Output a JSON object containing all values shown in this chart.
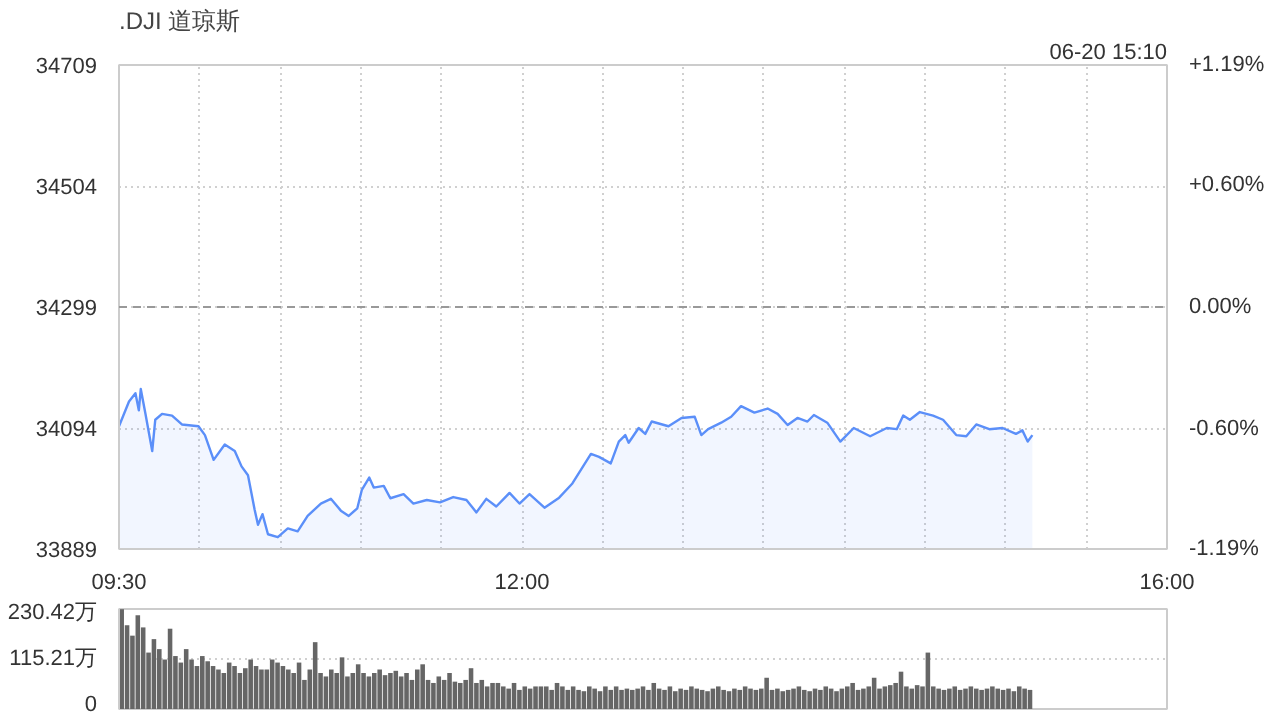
{
  "chart_data": [
    {
      "type": "area",
      "title": ".DJI 道琼斯",
      "annotations": [
        "06-20 15:10"
      ],
      "x": [
        9.5,
        9.562,
        9.602,
        9.623,
        9.635,
        9.664,
        9.706,
        9.725,
        9.767,
        9.829,
        9.89,
        9.993,
        10.033,
        10.087,
        10.156,
        10.218,
        10.26,
        10.3,
        10.341,
        10.362,
        10.39,
        10.424,
        10.485,
        10.547,
        10.608,
        10.67,
        10.752,
        10.814,
        10.876,
        10.925,
        10.978,
        11.006,
        11.052,
        11.08,
        11.142,
        11.183,
        11.265,
        11.326,
        11.409,
        11.491,
        11.573,
        11.655,
        11.717,
        11.778,
        11.84,
        11.922,
        11.984,
        12.046,
        12.139,
        12.23,
        12.312,
        12.427,
        12.477,
        12.55,
        12.6,
        12.64,
        12.661,
        12.723,
        12.764,
        12.804,
        12.908,
        12.989,
        13.071,
        13.112,
        13.154,
        13.235,
        13.297,
        13.358,
        13.441,
        13.523,
        13.585,
        13.647,
        13.708,
        13.77,
        13.81,
        13.893,
        13.974,
        14.057,
        14.159,
        14.262,
        14.324,
        14.364,
        14.405,
        14.467,
        14.549,
        14.611,
        14.693,
        14.755,
        14.817,
        14.898,
        14.98,
        15.063,
        15.103,
        15.136,
        15.165
      ],
      "series": [
        {
          "color": "#5b8ff9",
          "values": [
            34097,
            34139,
            34153,
            34124,
            34160,
            34118,
            34055,
            34108,
            34118,
            34115,
            34100,
            34097,
            34082,
            34040,
            34066,
            34055,
            34029,
            34014,
            33956,
            33930,
            33948,
            33914,
            33909,
            33924,
            33919,
            33945,
            33966,
            33974,
            33954,
            33945,
            33958,
            33989,
            34010,
            33993,
            33996,
            33975,
            33982,
            33966,
            33972,
            33968,
            33977,
            33972,
            33951,
            33974,
            33961,
            33984,
            33966,
            33982,
            33959,
            33976,
            34000,
            34050,
            34045,
            34034,
            34071,
            34082,
            34069,
            34094,
            34084,
            34105,
            34097,
            34111,
            34113,
            34082,
            34092,
            34103,
            34113,
            34131,
            34120,
            34127,
            34118,
            34099,
            34111,
            34105,
            34116,
            34103,
            34071,
            34094,
            34080,
            34094,
            34092,
            34115,
            34108,
            34121,
            34115,
            34108,
            34082,
            34080,
            34100,
            34092,
            34094,
            34084,
            34090,
            34071,
            34082
          ]
        }
      ],
      "xlim": [
        9.5,
        16
      ],
      "xticks": [
        {
          "value": 9.5,
          "label": "09:30"
        },
        {
          "value": 10,
          "label": null
        },
        {
          "value": 10.5,
          "label": null
        },
        {
          "value": 11,
          "label": null
        },
        {
          "value": 11.5,
          "label": null
        },
        {
          "value": 12,
          "label": "12:00"
        },
        {
          "value": 12.5,
          "label": null
        },
        {
          "value": 13,
          "label": null
        },
        {
          "value": 13.5,
          "label": null
        },
        {
          "value": 14,
          "label": null
        },
        {
          "value": 14.5,
          "label": null
        },
        {
          "value": 15,
          "label": null
        },
        {
          "value": 15.5,
          "label": null
        },
        {
          "value": 16,
          "label": "16:00"
        }
      ],
      "ylim": [
        33889,
        34709
      ],
      "yticks": [
        33889,
        34094,
        34299,
        34504,
        34709
      ],
      "y2lim": [
        -1.19,
        1.19
      ],
      "y2ticks": [
        {
          "value": -1.19,
          "label": "-1.19%"
        },
        {
          "value": -0.6,
          "label": "-0.60%"
        },
        {
          "value": 0,
          "label": "0.00%"
        },
        {
          "value": 0.6,
          "label": "+0.60%"
        },
        {
          "value": 1.19,
          "label": "+1.19%"
        }
      ],
      "ref_lines": [
        {
          "axis": "y",
          "value": 34299,
          "color": "#999999",
          "line_style": "dashed"
        }
      ],
      "grid": true
    },
    {
      "type": "bar",
      "categories": [
        null,
        null,
        null,
        null,
        null,
        null,
        null,
        null,
        null,
        null,
        null,
        null,
        null,
        null,
        null,
        null,
        null,
        null,
        null,
        null,
        null,
        null,
        null,
        null,
        null,
        null,
        null,
        null,
        null,
        null,
        null,
        null,
        null,
        null,
        null,
        null,
        null,
        null,
        null,
        null,
        null,
        null,
        null,
        null,
        null,
        null,
        null,
        null,
        null,
        null,
        null,
        null,
        null,
        null,
        null,
        null,
        null,
        null,
        null,
        null,
        null,
        null,
        null,
        null,
        null,
        null,
        null,
        null,
        null,
        null,
        null,
        null,
        null,
        null,
        null,
        null,
        null,
        null,
        null,
        null,
        null,
        null,
        null,
        null,
        null,
        null,
        null,
        null,
        null,
        null,
        null,
        null,
        null,
        null,
        null,
        null,
        null,
        null,
        null,
        null,
        null,
        null,
        null,
        null,
        null,
        null,
        null,
        null,
        null,
        null,
        null,
        null,
        null,
        null,
        null,
        null,
        null,
        null,
        null,
        null,
        null,
        null,
        null,
        null,
        null,
        null,
        null,
        null,
        null,
        null,
        null,
        null,
        null,
        null,
        null,
        null,
        null,
        null,
        null,
        null,
        null,
        null,
        null,
        null,
        null,
        null,
        null,
        null,
        null,
        null,
        null,
        null,
        null,
        null,
        null,
        null,
        null,
        null,
        null,
        null,
        null,
        null,
        null,
        null,
        null,
        null,
        null,
        null,
        null,
        null
      ],
      "series": [
        {
          "color": "#666666",
          "values": [
            230,
            193,
            169,
            216,
            188,
            130,
            161,
            138,
            114,
            185,
            122,
            107,
            138,
            114,
            99,
            122,
            110,
            99,
            91,
            83,
            107,
            99,
            83,
            94,
            114,
            99,
            91,
            91,
            114,
            107,
            99,
            91,
            83,
            107,
            67,
            91,
            154,
            83,
            75,
            91,
            83,
            119,
            75,
            83,
            103,
            83,
            75,
            83,
            91,
            78,
            83,
            88,
            75,
            83,
            67,
            91,
            103,
            67,
            60,
            75,
            67,
            83,
            63,
            60,
            67,
            94,
            60,
            67,
            52,
            60,
            60,
            52,
            47,
            60,
            44,
            52,
            47,
            52,
            52,
            52,
            44,
            60,
            52,
            44,
            52,
            44,
            41,
            52,
            47,
            41,
            52,
            44,
            52,
            44,
            47,
            44,
            47,
            52,
            44,
            60,
            47,
            44,
            52,
            41,
            47,
            44,
            52,
            47,
            44,
            41,
            47,
            52,
            44,
            41,
            47,
            44,
            52,
            47,
            44,
            47,
            72,
            44,
            47,
            41,
            44,
            47,
            52,
            44,
            41,
            47,
            44,
            52,
            47,
            41,
            47,
            52,
            60,
            44,
            47,
            52,
            72,
            47,
            52,
            55,
            60,
            86,
            52,
            47,
            55,
            52,
            130,
            52,
            47,
            44,
            47,
            52,
            44,
            47,
            52,
            47,
            44,
            47,
            52,
            47,
            44,
            47,
            41,
            52,
            47,
            44
          ]
        }
      ],
      "ylim": [
        0,
        230.42
      ],
      "yticks": [
        0,
        {
          "value": 115.21,
          "label": "115.21万"
        },
        {
          "value": 230.42,
          "label": "230.42万"
        }
      ],
      "grid": "y",
      "tick_labels": "y"
    }
  ]
}
